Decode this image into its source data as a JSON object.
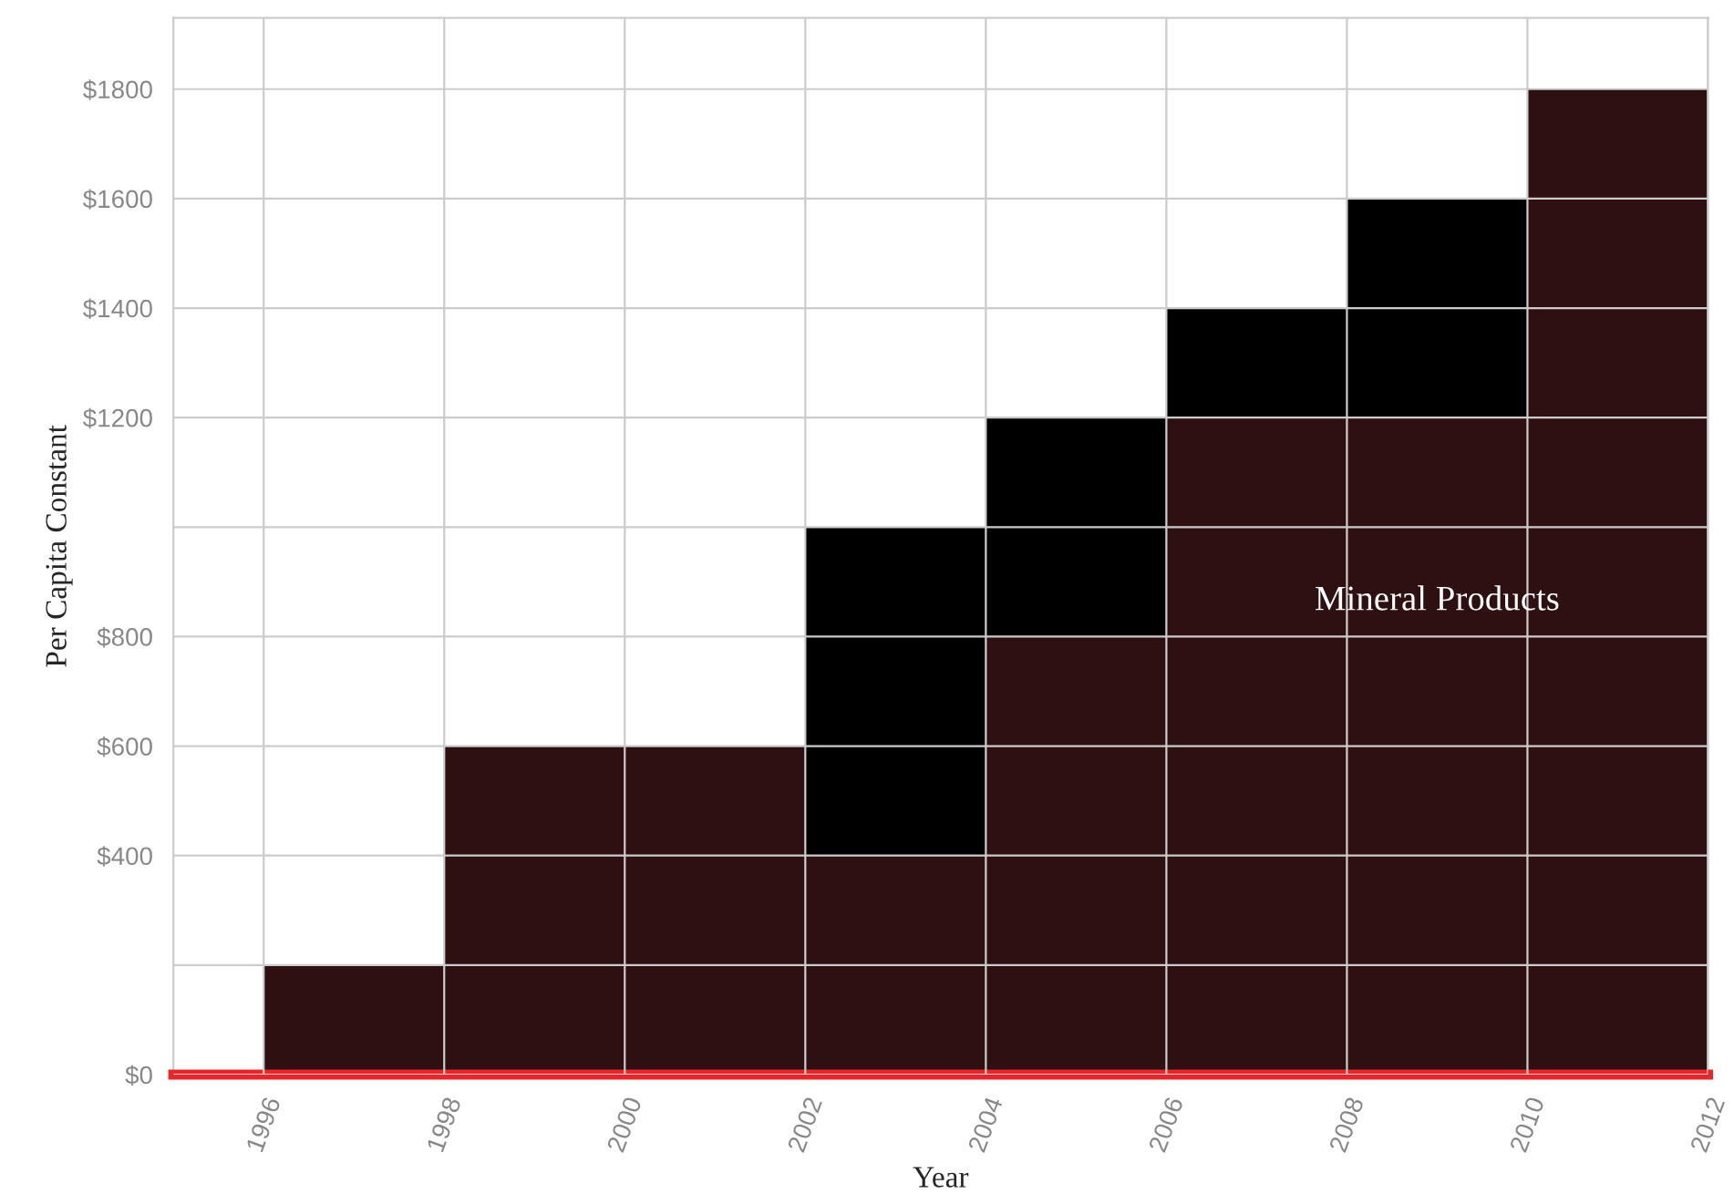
{
  "chart_data": {
    "type": "bar",
    "stacked": true,
    "xlabel": "Year",
    "ylabel": "Per Capita Constant",
    "x": [
      1997,
      1999,
      2001,
      2003,
      2005,
      2007,
      2009,
      2011
    ],
    "series": [
      {
        "name": "Mineral Products",
        "color": "#2e1012",
        "values": [
          200,
          600,
          600,
          400,
          800,
          1200,
          1200,
          1800
        ]
      },
      {
        "color": "#000000",
        "values": [
          0,
          0,
          0,
          600,
          400,
          200,
          400,
          0
        ]
      }
    ],
    "xlim": [
      1995,
      2012
    ],
    "xticks": [
      1996,
      1998,
      2000,
      2002,
      2004,
      2006,
      2008,
      2010,
      2012
    ],
    "ylim": [
      0,
      1930
    ],
    "yticks": [
      {
        "value": 0,
        "label": "$0"
      },
      {
        "value": 200,
        "label": null
      },
      {
        "value": 400,
        "label": "$400"
      },
      {
        "value": 600,
        "label": "$600"
      },
      {
        "value": 800,
        "label": "$800"
      },
      {
        "value": 1000,
        "label": null
      },
      {
        "value": 1200,
        "label": "$1200"
      },
      {
        "value": 1400,
        "label": "$1400"
      },
      {
        "value": 1600,
        "label": "$1600"
      },
      {
        "value": 1800,
        "label": "$1800"
      }
    ],
    "grid": true,
    "legend": false
  }
}
